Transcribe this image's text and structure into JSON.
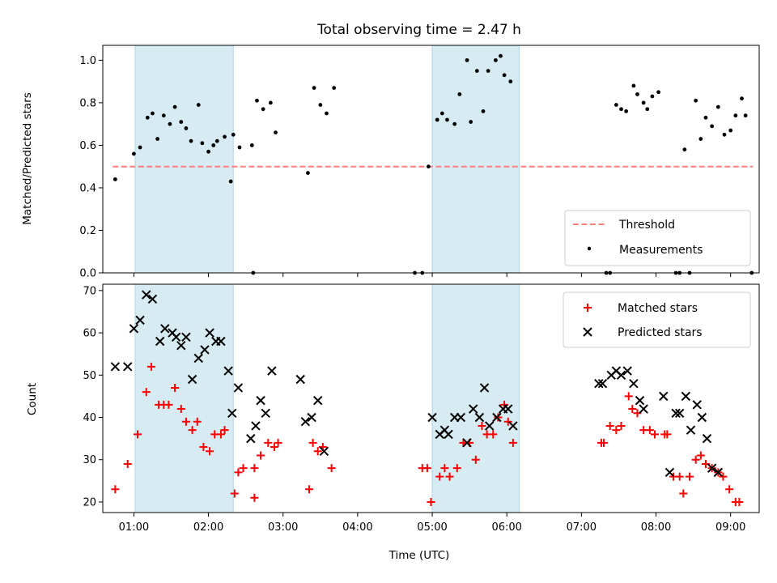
{
  "chart_data": {
    "title": "Total observing time = 2.47 h",
    "xlabel": "Time (UTC)",
    "x_ticks": [
      "01:00",
      "02:00",
      "03:00",
      "04:00",
      "05:00",
      "06:00",
      "07:00",
      "08:00",
      "09:00"
    ],
    "xlim": [
      "00:35",
      "09:23"
    ],
    "highlight_spans": [
      {
        "start": "01:01",
        "end": "02:20",
        "color": "#add8e6"
      },
      {
        "start": "05:00",
        "end": "06:10",
        "color": "#add8e6"
      }
    ],
    "panels": [
      {
        "type": "scatter",
        "ylabel": "Matched/Predicted stars",
        "ylim": [
          0,
          1.07
        ],
        "y_ticks": [
          0.0,
          0.2,
          0.4,
          0.6,
          0.8,
          1.0
        ],
        "grid": false,
        "legend_position": "bottom-right",
        "threshold": {
          "name": "Threshold",
          "value": 0.5,
          "color": "#ff7f7f",
          "style": "dashed",
          "x_start": "00:43",
          "x_end": "09:18"
        },
        "series": [
          {
            "name": "Measurements",
            "color": "#000000",
            "marker": "dot",
            "points": [
              [
                "00:45",
                0.44
              ],
              [
                "01:00",
                0.56
              ],
              [
                "01:05",
                0.59
              ],
              [
                "01:11",
                0.73
              ],
              [
                "01:15",
                0.75
              ],
              [
                "01:19",
                0.63
              ],
              [
                "01:24",
                0.74
              ],
              [
                "01:29",
                0.7
              ],
              [
                "01:33",
                0.78
              ],
              [
                "01:38",
                0.71
              ],
              [
                "01:42",
                0.68
              ],
              [
                "01:46",
                0.62
              ],
              [
                "01:52",
                0.79
              ],
              [
                "01:55",
                0.61
              ],
              [
                "02:00",
                0.57
              ],
              [
                "02:04",
                0.6
              ],
              [
                "02:07",
                0.62
              ],
              [
                "02:13",
                0.64
              ],
              [
                "02:18",
                0.43
              ],
              [
                "02:20",
                0.65
              ],
              [
                "02:25",
                0.59
              ],
              [
                "02:35",
                0.6
              ],
              [
                "02:36",
                0.0
              ],
              [
                "02:39",
                0.81
              ],
              [
                "02:44",
                0.77
              ],
              [
                "02:50",
                0.8
              ],
              [
                "02:54",
                0.66
              ],
              [
                "03:20",
                0.47
              ],
              [
                "03:25",
                0.87
              ],
              [
                "03:30",
                0.79
              ],
              [
                "03:35",
                0.75
              ],
              [
                "03:41",
                0.87
              ],
              [
                "04:46",
                0.0
              ],
              [
                "04:52",
                0.0
              ],
              [
                "04:57",
                0.5
              ],
              [
                "05:04",
                0.72
              ],
              [
                "05:08",
                0.75
              ],
              [
                "05:12",
                0.72
              ],
              [
                "05:18",
                0.7
              ],
              [
                "05:22",
                0.84
              ],
              [
                "05:28",
                1.0
              ],
              [
                "05:31",
                0.71
              ],
              [
                "05:36",
                0.95
              ],
              [
                "05:41",
                0.76
              ],
              [
                "05:45",
                0.95
              ],
              [
                "05:51",
                1.0
              ],
              [
                "05:55",
                1.02
              ],
              [
                "05:58",
                0.93
              ],
              [
                "06:03",
                0.9
              ],
              [
                "07:20",
                0.0
              ],
              [
                "07:23",
                0.0
              ],
              [
                "07:28",
                0.79
              ],
              [
                "07:32",
                0.77
              ],
              [
                "07:36",
                0.76
              ],
              [
                "07:42",
                0.88
              ],
              [
                "07:45",
                0.84
              ],
              [
                "07:50",
                0.8
              ],
              [
                "07:53",
                0.77
              ],
              [
                "07:57",
                0.83
              ],
              [
                "08:02",
                0.85
              ],
              [
                "08:16",
                0.0
              ],
              [
                "08:19",
                0.0
              ],
              [
                "08:23",
                0.58
              ],
              [
                "08:27",
                0.0
              ],
              [
                "08:32",
                0.81
              ],
              [
                "08:36",
                0.63
              ],
              [
                "08:40",
                0.73
              ],
              [
                "08:45",
                0.69
              ],
              [
                "08:50",
                0.78
              ],
              [
                "08:55",
                0.65
              ],
              [
                "09:00",
                0.67
              ],
              [
                "09:04",
                0.74
              ],
              [
                "09:09",
                0.82
              ],
              [
                "09:12",
                0.74
              ],
              [
                "09:17",
                0.0
              ]
            ]
          }
        ]
      },
      {
        "type": "scatter",
        "ylabel": "Count",
        "ylim": [
          17.5,
          71.5
        ],
        "y_ticks": [
          20,
          30,
          40,
          50,
          60,
          70
        ],
        "grid": false,
        "legend_position": "top-right",
        "series": [
          {
            "name": "Matched stars",
            "color": "#ff0000",
            "marker": "plus",
            "points": [
              [
                "00:45",
                23
              ],
              [
                "00:55",
                29
              ],
              [
                "01:03",
                36
              ],
              [
                "01:10",
                46
              ],
              [
                "01:14",
                52
              ],
              [
                "01:20",
                43
              ],
              [
                "01:24",
                43
              ],
              [
                "01:28",
                43
              ],
              [
                "01:33",
                47
              ],
              [
                "01:38",
                42
              ],
              [
                "01:42",
                39
              ],
              [
                "01:47",
                37
              ],
              [
                "01:51",
                39
              ],
              [
                "01:56",
                33
              ],
              [
                "02:01",
                32
              ],
              [
                "02:05",
                36
              ],
              [
                "02:10",
                36
              ],
              [
                "02:13",
                37
              ],
              [
                "02:21",
                22
              ],
              [
                "02:24",
                27
              ],
              [
                "02:28",
                28
              ],
              [
                "02:37",
                28
              ],
              [
                "02:37",
                21
              ],
              [
                "02:42",
                31
              ],
              [
                "02:48",
                34
              ],
              [
                "02:53",
                33
              ],
              [
                "02:56",
                34
              ],
              [
                "03:21",
                23
              ],
              [
                "03:24",
                34
              ],
              [
                "03:28",
                32
              ],
              [
                "03:32",
                33
              ],
              [
                "03:39",
                28
              ],
              [
                "04:52",
                28
              ],
              [
                "04:56",
                28
              ],
              [
                "04:59",
                20
              ],
              [
                "05:06",
                26
              ],
              [
                "05:10",
                28
              ],
              [
                "05:14",
                26
              ],
              [
                "05:20",
                28
              ],
              [
                "05:25",
                34
              ],
              [
                "05:30",
                34
              ],
              [
                "05:35",
                30
              ],
              [
                "05:40",
                38
              ],
              [
                "05:44",
                36
              ],
              [
                "05:49",
                36
              ],
              [
                "05:53",
                40
              ],
              [
                "05:58",
                43
              ],
              [
                "06:01",
                39
              ],
              [
                "06:05",
                34
              ],
              [
                "07:16",
                34
              ],
              [
                "07:18",
                34
              ],
              [
                "07:23",
                38
              ],
              [
                "07:28",
                37
              ],
              [
                "07:32",
                38
              ],
              [
                "07:38",
                45
              ],
              [
                "07:41",
                42
              ],
              [
                "07:45",
                41
              ],
              [
                "07:50",
                37
              ],
              [
                "07:55",
                37
              ],
              [
                "07:59",
                36
              ],
              [
                "08:07",
                36
              ],
              [
                "08:09",
                36
              ],
              [
                "08:14",
                26
              ],
              [
                "08:19",
                26
              ],
              [
                "08:22",
                22
              ],
              [
                "08:27",
                26
              ],
              [
                "08:32",
                30
              ],
              [
                "08:36",
                31
              ],
              [
                "08:40",
                29
              ],
              [
                "08:45",
                28
              ],
              [
                "08:50",
                27
              ],
              [
                "08:54",
                26
              ],
              [
                "08:59",
                23
              ],
              [
                "09:04",
                20
              ],
              [
                "09:07",
                20
              ]
            ]
          },
          {
            "name": "Predicted stars",
            "color": "#000000",
            "marker": "x",
            "points": [
              [
                "00:45",
                52
              ],
              [
                "00:55",
                52
              ],
              [
                "01:00",
                61
              ],
              [
                "01:05",
                63
              ],
              [
                "01:10",
                69
              ],
              [
                "01:15",
                68
              ],
              [
                "01:21",
                58
              ],
              [
                "01:25",
                61
              ],
              [
                "01:31",
                60
              ],
              [
                "01:34",
                59
              ],
              [
                "01:38",
                57
              ],
              [
                "01:42",
                59
              ],
              [
                "01:47",
                49
              ],
              [
                "01:52",
                54
              ],
              [
                "01:57",
                56
              ],
              [
                "02:01",
                60
              ],
              [
                "02:06",
                58
              ],
              [
                "02:10",
                58
              ],
              [
                "02:16",
                51
              ],
              [
                "02:19",
                41
              ],
              [
                "02:24",
                47
              ],
              [
                "02:34",
                35
              ],
              [
                "02:38",
                38
              ],
              [
                "02:42",
                44
              ],
              [
                "02:46",
                41
              ],
              [
                "02:51",
                51
              ],
              [
                "03:14",
                49
              ],
              [
                "03:18",
                39
              ],
              [
                "03:23",
                40
              ],
              [
                "03:28",
                44
              ],
              [
                "03:33",
                32
              ],
              [
                "05:00",
                40
              ],
              [
                "05:06",
                36
              ],
              [
                "05:10",
                37
              ],
              [
                "05:13",
                36
              ],
              [
                "05:18",
                40
              ],
              [
                "05:23",
                40
              ],
              [
                "05:28",
                34
              ],
              [
                "05:33",
                42
              ],
              [
                "05:38",
                40
              ],
              [
                "05:42",
                47
              ],
              [
                "05:46",
                38
              ],
              [
                "05:52",
                40
              ],
              [
                "05:57",
                42
              ],
              [
                "06:01",
                42
              ],
              [
                "06:05",
                38
              ],
              [
                "07:14",
                48
              ],
              [
                "07:17",
                48
              ],
              [
                "07:24",
                50
              ],
              [
                "07:28",
                51
              ],
              [
                "07:32",
                50
              ],
              [
                "07:37",
                51
              ],
              [
                "07:42",
                48
              ],
              [
                "07:47",
                44
              ],
              [
                "07:50",
                42
              ],
              [
                "08:06",
                45
              ],
              [
                "08:11",
                27
              ],
              [
                "08:16",
                41
              ],
              [
                "08:19",
                41
              ],
              [
                "08:24",
                45
              ],
              [
                "08:28",
                37
              ],
              [
                "08:33",
                43
              ],
              [
                "08:37",
                40
              ],
              [
                "08:41",
                35
              ],
              [
                "08:45",
                28
              ],
              [
                "08:50",
                27
              ]
            ]
          }
        ]
      }
    ]
  }
}
